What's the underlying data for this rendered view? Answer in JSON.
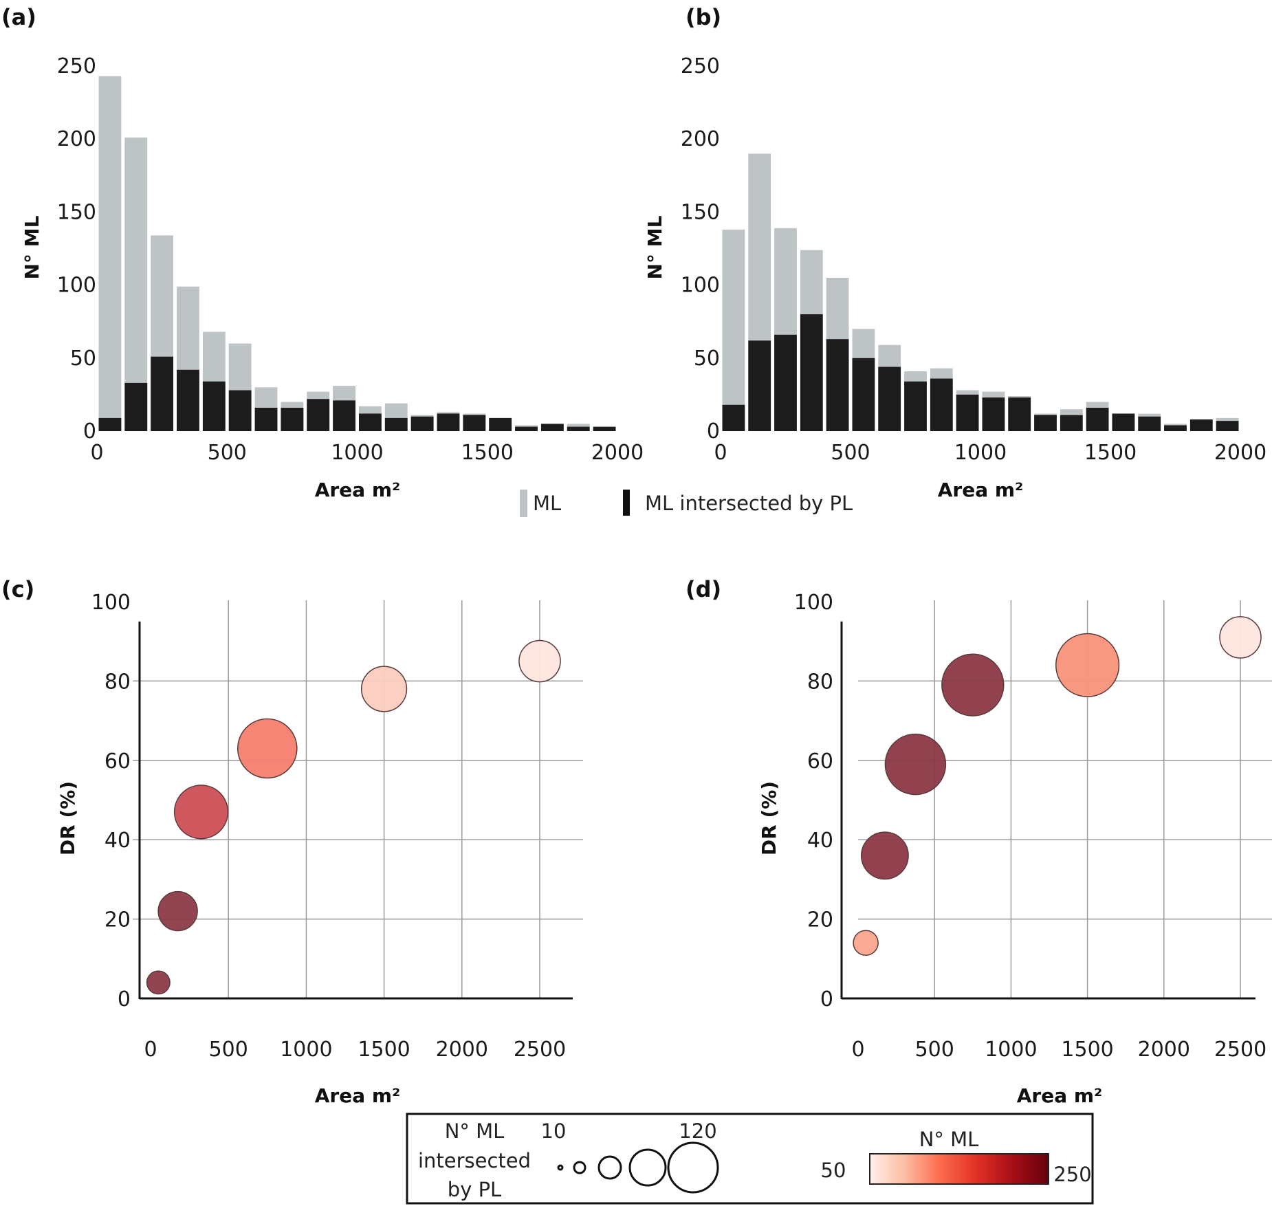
{
  "figure": {
    "panel_labels": [
      "(a)",
      "(b)",
      "(c)",
      "(d)"
    ]
  },
  "bar_legend": {
    "items": [
      {
        "label": "ML",
        "color": "#bec4c5"
      },
      {
        "label": "ML intersected by PL",
        "color": "#1c1c1c"
      }
    ]
  },
  "bubble_legend": {
    "size_title_lines": [
      "N° ML",
      "intersected",
      "by PL"
    ],
    "size_min_label": "10",
    "size_max_label": "120",
    "size_steps": [
      10,
      20,
      40,
      80,
      120
    ],
    "color_title": "N° ML",
    "color_min_label": "50",
    "color_max_label": "250",
    "color_stops": [
      "#fff1ec",
      "#fcbba1",
      "#fb6a4a",
      "#e03026",
      "#a50f15",
      "#67000d"
    ]
  },
  "chart_data": [
    {
      "panel": "(a)",
      "type": "bar",
      "stacked": "overlay",
      "title": "",
      "xlabel": "Area m²",
      "ylabel": "N° ML",
      "xlim": [
        0,
        2000
      ],
      "ylim": [
        0,
        250
      ],
      "xticks": [
        "0",
        "500",
        "1000",
        "1500",
        "2000"
      ],
      "yticks": [
        "0",
        "50",
        "100",
        "150",
        "200",
        "250"
      ],
      "bin_width": 100,
      "categories": [
        "0-100",
        "100-200",
        "200-300",
        "300-400",
        "400-500",
        "500-600",
        "600-700",
        "700-800",
        "800-900",
        "900-1000",
        "1000-1100",
        "1100-1200",
        "1200-1300",
        "1300-1400",
        "1400-1500",
        "1500-1600",
        "1600-1700",
        "1700-1800",
        "1800-1900",
        "1900-2000"
      ],
      "series": [
        {
          "name": "ML",
          "values": [
            243,
            201,
            134,
            99,
            68,
            60,
            30,
            20,
            27,
            31,
            17,
            19,
            11,
            13,
            12,
            9,
            4,
            5,
            5,
            3
          ]
        },
        {
          "name": "ML intersected by PL",
          "values": [
            9,
            33,
            51,
            42,
            34,
            28,
            16,
            16,
            22,
            21,
            12,
            9,
            10,
            12,
            11,
            9,
            3,
            5,
            3,
            3
          ]
        }
      ],
      "legend": "bottom-center"
    },
    {
      "panel": "(b)",
      "type": "bar",
      "stacked": "overlay",
      "title": "",
      "xlabel": "Area m²",
      "ylabel": "N° ML",
      "xlim": [
        0,
        2000
      ],
      "ylim": [
        0,
        250
      ],
      "xticks": [
        "0",
        "500",
        "1000",
        "1500",
        "2000"
      ],
      "yticks": [
        "0",
        "50",
        "100",
        "150",
        "200",
        "250"
      ],
      "bin_width": 100,
      "categories": [
        "0-100",
        "100-200",
        "200-300",
        "300-400",
        "400-500",
        "500-600",
        "600-700",
        "700-800",
        "800-900",
        "900-1000",
        "1000-1100",
        "1100-1200",
        "1200-1300",
        "1300-1400",
        "1400-1500",
        "1500-1600",
        "1600-1700",
        "1700-1800",
        "1800-1900",
        "1900-2000"
      ],
      "series": [
        {
          "name": "ML",
          "values": [
            138,
            190,
            139,
            124,
            105,
            70,
            59,
            41,
            43,
            28,
            27,
            24,
            12,
            15,
            20,
            12,
            12,
            5,
            8,
            9
          ]
        },
        {
          "name": "ML intersected by PL",
          "values": [
            18,
            62,
            66,
            80,
            63,
            50,
            44,
            34,
            36,
            25,
            23,
            23,
            11,
            11,
            16,
            12,
            10,
            4,
            8,
            7
          ]
        }
      ],
      "legend": "bottom-center"
    },
    {
      "panel": "(c)",
      "type": "scatter",
      "subtype": "bubble",
      "title": "",
      "xlabel": "Area m²",
      "ylabel": "DR (%)",
      "xlim": [
        0,
        2700
      ],
      "ylim": [
        0,
        100
      ],
      "xticks": [
        "0",
        "500",
        "1000",
        "1500",
        "2000",
        "2500"
      ],
      "yticks": [
        "0",
        "20",
        "40",
        "60",
        "80",
        "100"
      ],
      "grid": true,
      "points": [
        {
          "x": 50,
          "y": 4,
          "n_intersected": 8,
          "n_ml": 240,
          "color": "#8c3b47"
        },
        {
          "x": 175,
          "y": 22,
          "n_intersected": 35,
          "n_ml": 240,
          "color": "#8c3b47"
        },
        {
          "x": 325,
          "y": 47,
          "n_intersected": 75,
          "n_ml": 200,
          "color": "#cb4f55"
        },
        {
          "x": 750,
          "y": 63,
          "n_intersected": 95,
          "n_ml": 130,
          "color": "#f77e6f"
        },
        {
          "x": 1500,
          "y": 78,
          "n_intersected": 50,
          "n_ml": 70,
          "color": "#fbcdbf"
        },
        {
          "x": 2500,
          "y": 85,
          "n_intersected": 40,
          "n_ml": 55,
          "color": "#fde6de"
        }
      ]
    },
    {
      "panel": "(d)",
      "type": "scatter",
      "subtype": "bubble",
      "title": "",
      "xlabel": "Area m²",
      "ylabel": "DR (%)",
      "xlim": [
        0,
        2600
      ],
      "ylim": [
        0,
        100
      ],
      "xticks": [
        "0",
        "500",
        "1000",
        "1500",
        "2000",
        "2500"
      ],
      "yticks": [
        "0",
        "20",
        "40",
        "60",
        "80",
        "100"
      ],
      "grid": true,
      "points": [
        {
          "x": 50,
          "y": 14,
          "n_intersected": 10,
          "n_ml": 120,
          "color": "#f9a58f"
        },
        {
          "x": 175,
          "y": 36,
          "n_intersected": 55,
          "n_ml": 240,
          "color": "#8b3845"
        },
        {
          "x": 375,
          "y": 59,
          "n_intersected": 100,
          "n_ml": 245,
          "color": "#8b3845"
        },
        {
          "x": 750,
          "y": 79,
          "n_intersected": 105,
          "n_ml": 245,
          "color": "#8b3845"
        },
        {
          "x": 1500,
          "y": 84,
          "n_intersected": 110,
          "n_ml": 125,
          "color": "#f99279"
        },
        {
          "x": 2500,
          "y": 91,
          "n_intersected": 40,
          "n_ml": 55,
          "color": "#fde6de"
        }
      ]
    }
  ]
}
